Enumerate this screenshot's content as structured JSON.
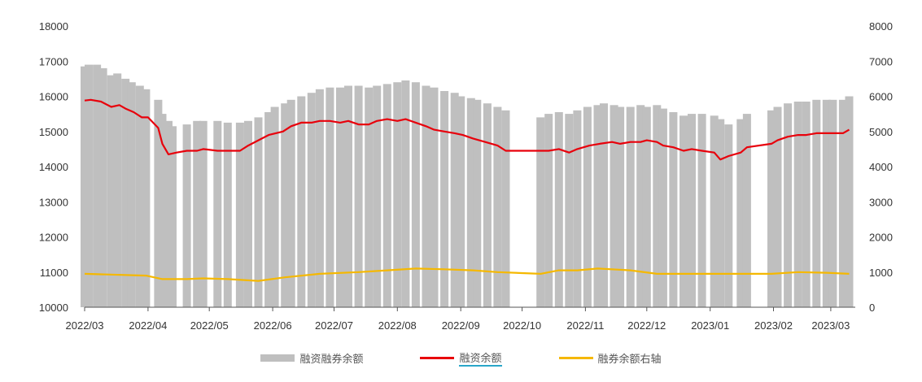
{
  "chart_data": {
    "type": "bar+line",
    "x_tick_labels": [
      "2022/03",
      "2022/04",
      "2022/05",
      "2022/06",
      "2022/07",
      "2022/08",
      "2022/09",
      "2022/10",
      "2022/11",
      "2022/12",
      "2023/01",
      "2023/02",
      "2023/03"
    ],
    "left_axis": {
      "ylim": [
        10000,
        18000
      ],
      "ticks": [
        10000,
        11000,
        12000,
        13000,
        14000,
        15000,
        16000,
        17000,
        18000
      ]
    },
    "right_axis": {
      "ylim": [
        0,
        8000
      ],
      "ticks": [
        0,
        1000,
        2000,
        3000,
        4000,
        5000,
        6000,
        7000,
        8000
      ]
    },
    "grid": false,
    "legend_position": "bottom",
    "colors": {
      "total_bar": "#bfbfbf",
      "financing_line": "#e8000b",
      "securities_line": "#f5b800"
    },
    "series": [
      {
        "name": "融资融券余额",
        "type": "bar",
        "axis": "left",
        "points": [
          [
            "2022/03/01",
            16850
          ],
          [
            "2022/03/03",
            16900
          ],
          [
            "2022/03/07",
            16900
          ],
          [
            "2022/03/10",
            16800
          ],
          [
            "2022/03/14",
            16600
          ],
          [
            "2022/03/17",
            16650
          ],
          [
            "2022/03/21",
            16500
          ],
          [
            "2022/03/24",
            16400
          ],
          [
            "2022/03/28",
            16300
          ],
          [
            "2022/03/31",
            16200
          ],
          [
            "2022/04/06",
            15900
          ],
          [
            "2022/04/08",
            15500
          ],
          [
            "2022/04/11",
            15300
          ],
          [
            "2022/04/13",
            15150
          ],
          [
            "2022/04/20",
            15200
          ],
          [
            "2022/04/25",
            15300
          ],
          [
            "2022/04/28",
            15300
          ],
          [
            "2022/05/05",
            15300
          ],
          [
            "2022/05/10",
            15250
          ],
          [
            "2022/05/16",
            15250
          ],
          [
            "2022/05/20",
            15300
          ],
          [
            "2022/05/25",
            15400
          ],
          [
            "2022/05/30",
            15550
          ],
          [
            "2022/06/02",
            15700
          ],
          [
            "2022/06/07",
            15800
          ],
          [
            "2022/06/10",
            15900
          ],
          [
            "2022/06/15",
            16000
          ],
          [
            "2022/06/20",
            16100
          ],
          [
            "2022/06/24",
            16200
          ],
          [
            "2022/06/29",
            16250
          ],
          [
            "2022/07/04",
            16250
          ],
          [
            "2022/07/08",
            16300
          ],
          [
            "2022/07/13",
            16300
          ],
          [
            "2022/07/18",
            16250
          ],
          [
            "2022/07/22",
            16300
          ],
          [
            "2022/07/27",
            16350
          ],
          [
            "2022/08/01",
            16400
          ],
          [
            "2022/08/05",
            16450
          ],
          [
            "2022/08/10",
            16400
          ],
          [
            "2022/08/15",
            16300
          ],
          [
            "2022/08/19",
            16250
          ],
          [
            "2022/08/24",
            16150
          ],
          [
            "2022/08/29",
            16100
          ],
          [
            "2022/09/01",
            16000
          ],
          [
            "2022/09/06",
            15950
          ],
          [
            "2022/09/09",
            15900
          ],
          [
            "2022/09/14",
            15800
          ],
          [
            "2022/09/19",
            15700
          ],
          [
            "2022/09/23",
            15600
          ],
          [
            "2022/10/10",
            15400
          ],
          [
            "2022/10/14",
            15500
          ],
          [
            "2022/10/19",
            15550
          ],
          [
            "2022/10/24",
            15500
          ],
          [
            "2022/10/28",
            15600
          ],
          [
            "2022/11/02",
            15700
          ],
          [
            "2022/11/07",
            15750
          ],
          [
            "2022/11/10",
            15800
          ],
          [
            "2022/11/15",
            15750
          ],
          [
            "2022/11/18",
            15700
          ],
          [
            "2022/11/23",
            15700
          ],
          [
            "2022/11/28",
            15750
          ],
          [
            "2022/12/01",
            15700
          ],
          [
            "2022/12/06",
            15750
          ],
          [
            "2022/12/09",
            15650
          ],
          [
            "2022/12/14",
            15550
          ],
          [
            "2022/12/19",
            15450
          ],
          [
            "2022/12/23",
            15500
          ],
          [
            "2022/12/28",
            15500
          ],
          [
            "2023/01/03",
            15450
          ],
          [
            "2023/01/06",
            15350
          ],
          [
            "2023/01/10",
            15200
          ],
          [
            "2023/01/16",
            15350
          ],
          [
            "2023/01/19",
            15500
          ],
          [
            "2023/01/31",
            15600
          ],
          [
            "2023/02/03",
            15700
          ],
          [
            "2023/02/08",
            15800
          ],
          [
            "2023/02/13",
            15850
          ],
          [
            "2023/02/17",
            15850
          ],
          [
            "2023/02/22",
            15900
          ],
          [
            "2023/02/27",
            15900
          ],
          [
            "2023/03/02",
            15900
          ],
          [
            "2023/03/07",
            15900
          ],
          [
            "2023/03/10",
            16000
          ]
        ]
      },
      {
        "name": "融资余额",
        "type": "line",
        "axis": "left",
        "points": [
          [
            "2022/03/01",
            15880
          ],
          [
            "2022/03/04",
            15900
          ],
          [
            "2022/03/09",
            15850
          ],
          [
            "2022/03/14",
            15700
          ],
          [
            "2022/03/18",
            15750
          ],
          [
            "2022/03/21",
            15650
          ],
          [
            "2022/03/25",
            15550
          ],
          [
            "2022/03/29",
            15400
          ],
          [
            "2022/04/01",
            15400
          ],
          [
            "2022/04/06",
            15100
          ],
          [
            "2022/04/08",
            14650
          ],
          [
            "2022/04/11",
            14350
          ],
          [
            "2022/04/15",
            14400
          ],
          [
            "2022/04/20",
            14450
          ],
          [
            "2022/04/25",
            14450
          ],
          [
            "2022/04/28",
            14500
          ],
          [
            "2022/05/05",
            14450
          ],
          [
            "2022/05/10",
            14450
          ],
          [
            "2022/05/16",
            14450
          ],
          [
            "2022/05/20",
            14600
          ],
          [
            "2022/05/25",
            14750
          ],
          [
            "2022/05/30",
            14900
          ],
          [
            "2022/06/06",
            15000
          ],
          [
            "2022/06/10",
            15150
          ],
          [
            "2022/06/15",
            15250
          ],
          [
            "2022/06/20",
            15250
          ],
          [
            "2022/06/24",
            15300
          ],
          [
            "2022/06/29",
            15300
          ],
          [
            "2022/07/04",
            15250
          ],
          [
            "2022/07/08",
            15300
          ],
          [
            "2022/07/13",
            15200
          ],
          [
            "2022/07/18",
            15200
          ],
          [
            "2022/07/22",
            15300
          ],
          [
            "2022/07/27",
            15350
          ],
          [
            "2022/08/01",
            15300
          ],
          [
            "2022/08/05",
            15350
          ],
          [
            "2022/08/10",
            15250
          ],
          [
            "2022/08/15",
            15150
          ],
          [
            "2022/08/19",
            15050
          ],
          [
            "2022/08/24",
            15000
          ],
          [
            "2022/08/29",
            14950
          ],
          [
            "2022/09/02",
            14900
          ],
          [
            "2022/09/07",
            14800
          ],
          [
            "2022/09/13",
            14700
          ],
          [
            "2022/09/19",
            14600
          ],
          [
            "2022/09/23",
            14450
          ],
          [
            "2022/10/10",
            14450
          ],
          [
            "2022/10/14",
            14450
          ],
          [
            "2022/10/19",
            14500
          ],
          [
            "2022/10/24",
            14400
          ],
          [
            "2022/10/28",
            14500
          ],
          [
            "2022/11/03",
            14600
          ],
          [
            "2022/11/08",
            14650
          ],
          [
            "2022/11/14",
            14700
          ],
          [
            "2022/11/18",
            14650
          ],
          [
            "2022/11/23",
            14700
          ],
          [
            "2022/11/28",
            14700
          ],
          [
            "2022/12/01",
            14750
          ],
          [
            "2022/12/06",
            14700
          ],
          [
            "2022/12/09",
            14600
          ],
          [
            "2022/12/14",
            14550
          ],
          [
            "2022/12/19",
            14450
          ],
          [
            "2022/12/23",
            14500
          ],
          [
            "2022/12/28",
            14450
          ],
          [
            "2023/01/03",
            14400
          ],
          [
            "2023/01/06",
            14200
          ],
          [
            "2023/01/10",
            14300
          ],
          [
            "2023/01/16",
            14400
          ],
          [
            "2023/01/19",
            14550
          ],
          [
            "2023/01/31",
            14650
          ],
          [
            "2023/02/03",
            14750
          ],
          [
            "2023/02/08",
            14850
          ],
          [
            "2023/02/13",
            14900
          ],
          [
            "2023/02/17",
            14900
          ],
          [
            "2023/02/22",
            14950
          ],
          [
            "2023/02/27",
            14950
          ],
          [
            "2023/03/02",
            14950
          ],
          [
            "2023/03/07",
            14950
          ],
          [
            "2023/03/10",
            15050
          ]
        ]
      },
      {
        "name": "融券余额右轴",
        "type": "line",
        "axis": "right",
        "points": [
          [
            "2022/03/01",
            950
          ],
          [
            "2022/03/31",
            900
          ],
          [
            "2022/04/08",
            800
          ],
          [
            "2022/04/20",
            800
          ],
          [
            "2022/04/28",
            820
          ],
          [
            "2022/05/10",
            800
          ],
          [
            "2022/05/25",
            750
          ],
          [
            "2022/06/07",
            850
          ],
          [
            "2022/06/24",
            950
          ],
          [
            "2022/07/13",
            1000
          ],
          [
            "2022/07/27",
            1050
          ],
          [
            "2022/08/10",
            1100
          ],
          [
            "2022/08/24",
            1080
          ],
          [
            "2022/09/07",
            1050
          ],
          [
            "2022/09/19",
            1000
          ],
          [
            "2022/10/10",
            950
          ],
          [
            "2022/10/19",
            1050
          ],
          [
            "2022/10/28",
            1050
          ],
          [
            "2022/11/07",
            1100
          ],
          [
            "2022/11/23",
            1050
          ],
          [
            "2022/12/06",
            950
          ],
          [
            "2022/12/19",
            950
          ],
          [
            "2023/01/03",
            950
          ],
          [
            "2023/01/19",
            950
          ],
          [
            "2023/01/31",
            950
          ],
          [
            "2023/02/13",
            1000
          ],
          [
            "2023/02/27",
            980
          ],
          [
            "2023/03/10",
            950
          ]
        ]
      }
    ]
  }
}
